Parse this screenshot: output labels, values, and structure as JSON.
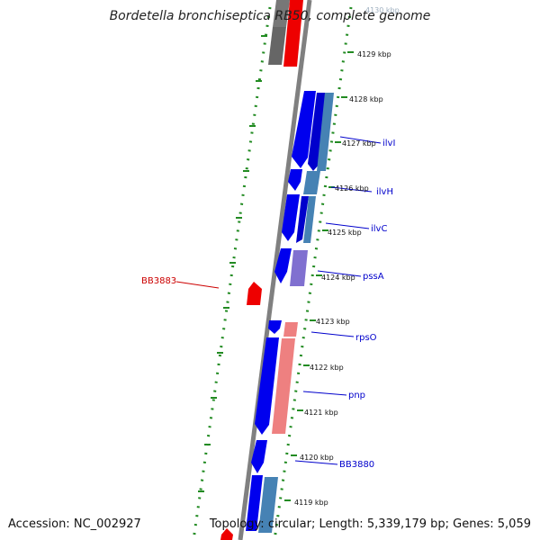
{
  "title": "Bordetella bronchiseptica RB50, complete genome",
  "footer": {
    "accession_label": "Accession:",
    "accession": "NC_002927",
    "topology_label": "Topology:",
    "topology": "circular",
    "length_label": "Length:",
    "length": "5,339,179 bp",
    "genes_label": "Genes:",
    "genes": "5,059"
  },
  "colors": {
    "backbone": "#888888",
    "tick": "#228B22",
    "label_blue": "#0000cc",
    "label_red": "#cc0000",
    "feature_blue": "#0000ee",
    "feature_steelblue": "#4682b4",
    "feature_red": "#ee0000",
    "feature_pink": "#ee8080",
    "feature_purple": "#8070d0",
    "feature_gray": "#666666"
  },
  "position_labels": [
    "4130 kbp",
    "4129 kbp",
    "4128 kbp",
    "4127 kbp",
    "4126 kbp",
    "4125 kbp",
    "4124 kbp",
    "4123 kbp",
    "4122 kbp",
    "4121 kbp",
    "4120 kbp",
    "4119 kbp"
  ],
  "gene_labels": [
    {
      "name": "BB3883",
      "color": "red"
    },
    {
      "name": "ilvI",
      "color": "blue"
    },
    {
      "name": "ilvH",
      "color": "blue"
    },
    {
      "name": "ilvC",
      "color": "blue"
    },
    {
      "name": "pssA",
      "color": "blue"
    },
    {
      "name": "rpsO",
      "color": "blue"
    },
    {
      "name": "pnp",
      "color": "blue"
    },
    {
      "name": "BB3880",
      "color": "blue"
    }
  ]
}
